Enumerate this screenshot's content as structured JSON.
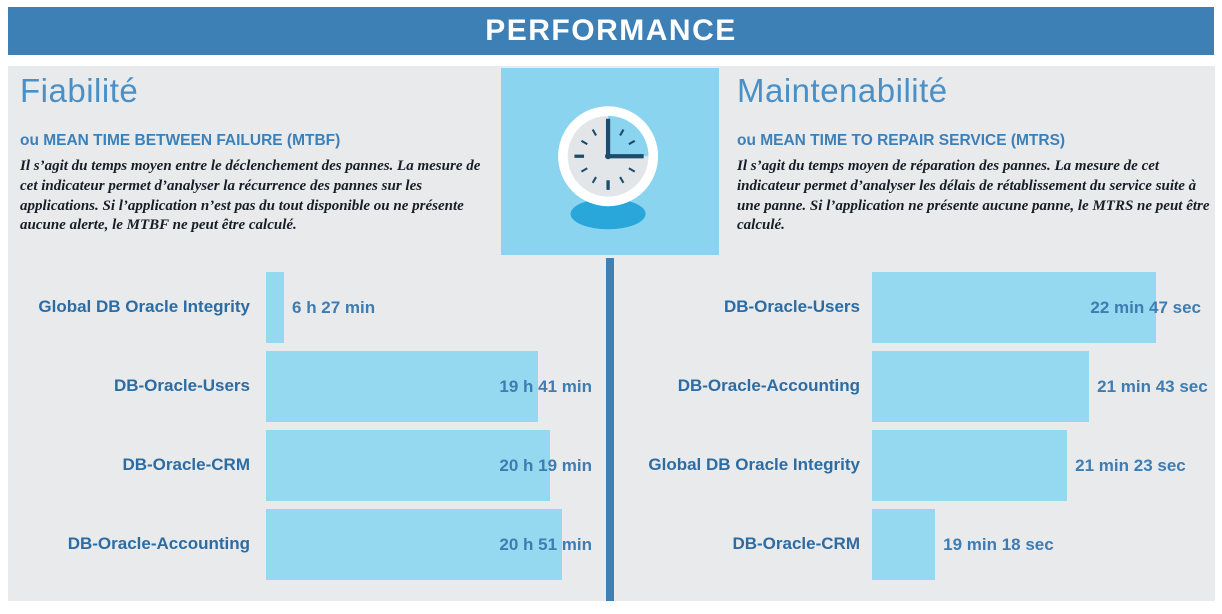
{
  "header": {
    "title": "PERFORMANCE"
  },
  "left": {
    "title": "Fiabilité",
    "subtitle": "ou MEAN TIME BETWEEN FAILURE (MTBF)",
    "description": "Il s’agit du temps moyen entre le déclenchement des pannes. La mesure de cet indicateur permet d’analyser la récurrence des pannes sur les applications. Si l’application n’est pas du tout disponible ou ne présente aucune alerte, le MTBF ne peut être calculé."
  },
  "right": {
    "title": "Maintenabilité",
    "subtitle": "ou MEAN TIME TO REPAIR SERVICE (MTRS)",
    "description": "Il s’agit du temps moyen de réparation des pannes. La mesure de cet indicateur permet d’analyser les délais de rétablissement du service suite à une panne. Si l’application ne présente aucune panne, le MTRS ne peut être calculé."
  },
  "center_icon": "clock-icon",
  "chart_data": [
    {
      "type": "bar",
      "orientation": "horizontal",
      "title": "Fiabilité (MTBF)",
      "unit": "minutes",
      "legend": "none",
      "grid": false,
      "categories": [
        "Global DB Oracle Integrity",
        "DB-Oracle-Users",
        "DB-Oracle-CRM",
        "DB-Oracle-Accounting"
      ],
      "values": [
        387,
        1181,
        1219,
        1251
      ],
      "value_labels": [
        "6 h 27 min",
        "19 h 41 min",
        "20 h 19 min",
        "20 h 51 min"
      ],
      "bar_width_pct": [
        5.3,
        80.0,
        83.5,
        87.1
      ],
      "value_placement": [
        "after-bar",
        "overlap-end",
        "overlap-end",
        "overlap-end"
      ]
    },
    {
      "type": "bar",
      "orientation": "horizontal",
      "title": "Maintenabilité (MTRS)",
      "unit": "seconds",
      "legend": "none",
      "grid": false,
      "categories": [
        "DB-Oracle-Users",
        "DB-Oracle-Accounting",
        "Global DB Oracle Integrity",
        "DB-Oracle-CRM"
      ],
      "values": [
        1367,
        1303,
        1283,
        1158
      ],
      "value_labels": [
        "22 min 47 sec",
        "21 min 43 sec",
        "21 min 23 sec",
        "19 min 18 sec"
      ],
      "bar_width_pct": [
        82.8,
        63.3,
        56.9,
        18.4
      ],
      "value_placement": [
        "overlap-end",
        "after-bar",
        "after-bar",
        "after-bar"
      ]
    }
  ],
  "colors": {
    "header_bg": "#3d80b6",
    "panel_bg": "#e8eaec",
    "bar": "#95d9f0",
    "square_bg": "#8bd4ef",
    "title": "#4a90c6",
    "subtitle": "#3c80ba",
    "bar_label": "#2d6ca3",
    "bar_value": "#3e7cb1",
    "divider": "#3d80b6",
    "clock_dark": "#1d4d6b",
    "clock_shadow": "#29a7da",
    "desc": "#161d26"
  }
}
